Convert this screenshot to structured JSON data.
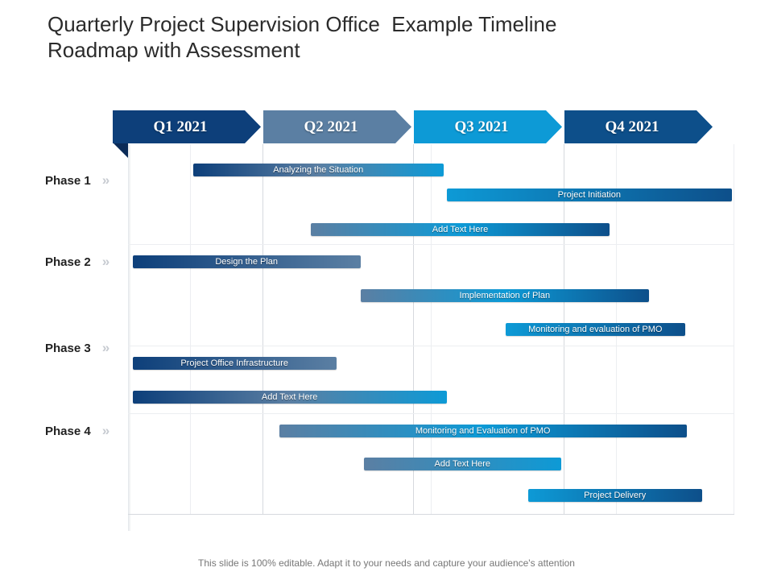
{
  "title": {
    "line1": "Quarterly Project Supervision Office  Example Timeline",
    "line2": "Roadmap with Assessment"
  },
  "quarters": [
    {
      "label": "Q1 2021",
      "color": "#0d3f7a"
    },
    {
      "label": "Q2 2021",
      "color": "#5b7fa3"
    },
    {
      "label": "Q3 2021",
      "color": "#0d9ad6"
    },
    {
      "label": "Q4 2021",
      "color": "#0d4f8a"
    }
  ],
  "phases": [
    {
      "label": "Phase 1",
      "chevron": "»"
    },
    {
      "label": "Phase 2",
      "chevron": "»"
    },
    {
      "label": "Phase 3",
      "chevron": "»"
    },
    {
      "label": "Phase 4",
      "chevron": "»"
    }
  ],
  "tasks": [
    {
      "label": "Analyzing the Situation",
      "start_quarter": 1.43,
      "end_quarter": 3.09,
      "colors": [
        "#0d3f7a",
        "#5b7fa3",
        "#0d9ad6"
      ]
    },
    {
      "label": "Project Initiation",
      "start_quarter": 3.11,
      "end_quarter": 5.0,
      "colors": [
        "#0d9ad6",
        "#0d4f8a"
      ]
    },
    {
      "label": "Add Text Here",
      "start_quarter": 2.21,
      "end_quarter": 4.19,
      "colors": [
        "#5b7fa3",
        "#0d9ad6",
        "#0d4f8a"
      ]
    },
    {
      "label": "Design the Plan",
      "start_quarter": 1.03,
      "end_quarter": 2.54,
      "colors": [
        "#0d3f7a",
        "#5b7fa3"
      ]
    },
    {
      "label": "Implementation of Plan",
      "start_quarter": 2.54,
      "end_quarter": 4.45,
      "colors": [
        "#5b7fa3",
        "#0d9ad6",
        "#0d4f8a"
      ]
    },
    {
      "label": "Monitoring and evaluation of  PMO",
      "start_quarter": 3.5,
      "end_quarter": 4.69,
      "colors": [
        "#0d9ad6",
        "#0d4f8a"
      ]
    },
    {
      "label": "Project Office Infrastructure",
      "start_quarter": 1.03,
      "end_quarter": 2.38,
      "colors": [
        "#0d3f7a",
        "#5b7fa3"
      ]
    },
    {
      "label": "Add Text Here",
      "start_quarter": 1.03,
      "end_quarter": 3.11,
      "colors": [
        "#0d3f7a",
        "#5b7fa3",
        "#0d9ad6"
      ]
    },
    {
      "label": "Monitoring and Evaluation of  PMO",
      "start_quarter": 2.0,
      "end_quarter": 4.7,
      "colors": [
        "#5b7fa3",
        "#0d9ad6",
        "#0d4f8a"
      ]
    },
    {
      "label": "Add Text Here",
      "start_quarter": 2.56,
      "end_quarter": 3.87,
      "colors": [
        "#5b7fa3",
        "#0d9ad6"
      ]
    },
    {
      "label": "Project Delivery",
      "start_quarter": 3.65,
      "end_quarter": 4.8,
      "colors": [
        "#0d9ad6",
        "#0d4f8a"
      ]
    }
  ],
  "footer": "This slide is 100% editable. Adapt it to your needs and capture your audience's attention"
}
